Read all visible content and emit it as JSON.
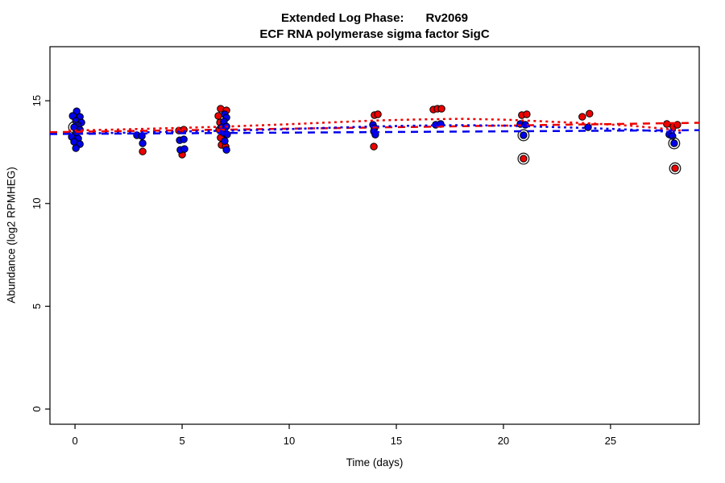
{
  "figure": {
    "title_prefix": "Extended Log Phase:",
    "title_gene": "Rv2069",
    "subtitle": "ECF RNA polymerase sigma factor SigC"
  },
  "chart_data": {
    "type": "scatter",
    "title": "Extended Log Phase: Rv2069",
    "subtitle": "ECF RNA polymerase sigma factor SigC",
    "xlabel": "Time  (days)",
    "ylabel": "Abundance  (log2 RPMHEG)",
    "xlim": [
      -1.17,
      29.14
    ],
    "ylim": [
      -0.74,
      17.63
    ],
    "x_ticks": [
      0,
      5,
      10,
      15,
      20,
      25
    ],
    "y_ticks": [
      0,
      5,
      10,
      15
    ],
    "grid": false,
    "legend": "none",
    "colors": {
      "red": "#ee0000",
      "blue": "#0000ee",
      "axis": "#000000",
      "ring": "#1a1a1a"
    },
    "series": [
      {
        "name": "red-points",
        "color": "#ee0000",
        "marker": "circle",
        "points": [
          [
            3.16,
            12.53
          ],
          [
            4.85,
            13.55
          ],
          [
            5.08,
            13.59
          ],
          [
            5.0,
            12.38
          ],
          [
            6.8,
            14.61
          ],
          [
            7.07,
            14.53
          ],
          [
            6.69,
            14.26
          ],
          [
            6.77,
            13.94
          ],
          [
            6.73,
            13.59
          ],
          [
            6.8,
            13.2
          ],
          [
            6.84,
            12.85
          ],
          [
            7.03,
            12.77
          ],
          [
            13.98,
            14.3
          ],
          [
            14.14,
            14.34
          ],
          [
            13.95,
            12.77
          ],
          [
            16.73,
            14.57
          ],
          [
            16.92,
            14.61
          ],
          [
            17.11,
            14.61
          ],
          [
            20.86,
            14.3
          ],
          [
            21.09,
            14.34
          ],
          [
            20.94,
            12.18
          ],
          [
            23.68,
            14.22
          ],
          [
            24.02,
            14.37
          ],
          [
            27.63,
            13.87
          ],
          [
            27.93,
            13.75
          ],
          [
            28.12,
            13.83
          ],
          [
            28.01,
            11.71
          ]
        ]
      },
      {
        "name": "blue-points",
        "color": "#0000ee",
        "marker": "circle",
        "points": [
          [
            0.08,
            14.49
          ],
          [
            -0.11,
            14.26
          ],
          [
            0.23,
            14.22
          ],
          [
            0.04,
            14.02
          ],
          [
            0.3,
            13.94
          ],
          [
            0.15,
            13.79
          ],
          [
            -0.04,
            13.71
          ],
          [
            0.23,
            13.59
          ],
          [
            0.04,
            13.4
          ],
          [
            -0.15,
            13.24
          ],
          [
            0.15,
            13.16
          ],
          [
            -0.04,
            13.0
          ],
          [
            0.23,
            12.89
          ],
          [
            0.04,
            12.69
          ],
          [
            2.89,
            13.32
          ],
          [
            3.12,
            13.28
          ],
          [
            3.16,
            12.93
          ],
          [
            4.89,
            13.08
          ],
          [
            5.08,
            13.12
          ],
          [
            4.92,
            12.61
          ],
          [
            5.11,
            12.65
          ],
          [
            6.99,
            14.34
          ],
          [
            7.07,
            14.18
          ],
          [
            6.95,
            13.98
          ],
          [
            6.84,
            13.71
          ],
          [
            7.07,
            13.75
          ],
          [
            6.95,
            13.43
          ],
          [
            7.1,
            13.36
          ],
          [
            6.99,
            13.04
          ],
          [
            7.07,
            12.61
          ],
          [
            13.91,
            13.83
          ],
          [
            13.98,
            13.67
          ],
          [
            13.95,
            13.51
          ],
          [
            14.02,
            13.35
          ],
          [
            16.84,
            13.83
          ],
          [
            17.07,
            13.87
          ],
          [
            20.79,
            13.87
          ],
          [
            21.02,
            13.83
          ],
          [
            20.94,
            13.32
          ],
          [
            23.95,
            13.71
          ],
          [
            27.74,
            13.36
          ],
          [
            27.89,
            13.28
          ],
          [
            27.97,
            12.93
          ]
        ]
      }
    ],
    "outlier_rings": [
      [
        -0.04,
        13.71
      ],
      [
        20.94,
        13.32
      ],
      [
        20.94,
        12.18
      ],
      [
        27.97,
        12.93
      ],
      [
        28.01,
        11.71
      ]
    ],
    "fit_lines": [
      {
        "name": "red-dashed-linear-fit",
        "color": "#ee0000",
        "dash": "dashed",
        "points": [
          [
            -1.17,
            13.47
          ],
          [
            29.14,
            13.93
          ]
        ]
      },
      {
        "name": "blue-dashed-linear-fit",
        "color": "#0000ee",
        "dash": "dashed",
        "points": [
          [
            -1.17,
            13.38
          ],
          [
            29.14,
            13.57
          ]
        ]
      },
      {
        "name": "red-dotted-smooth-fit",
        "color": "#ee0000",
        "dash": "dotted",
        "points": [
          [
            -0.3,
            13.55
          ],
          [
            2,
            13.6
          ],
          [
            5,
            13.68
          ],
          [
            7,
            13.74
          ],
          [
            10,
            13.86
          ],
          [
            12,
            13.95
          ],
          [
            14,
            14.04
          ],
          [
            16,
            14.09
          ],
          [
            18,
            14.12
          ],
          [
            20,
            14.08
          ],
          [
            22,
            13.99
          ],
          [
            24,
            13.9
          ],
          [
            26,
            13.78
          ],
          [
            27.5,
            13.64
          ],
          [
            28.3,
            13.55
          ]
        ]
      },
      {
        "name": "blue-dotted-smooth-fit",
        "color": "#0000ee",
        "dash": "dotted",
        "points": [
          [
            -0.3,
            13.4
          ],
          [
            2,
            13.44
          ],
          [
            5,
            13.5
          ],
          [
            7,
            13.54
          ],
          [
            10,
            13.62
          ],
          [
            12,
            13.69
          ],
          [
            14,
            13.75
          ],
          [
            16,
            13.79
          ],
          [
            18,
            13.81
          ],
          [
            20,
            13.79
          ],
          [
            22,
            13.73
          ],
          [
            24,
            13.67
          ],
          [
            26,
            13.59
          ],
          [
            27.5,
            13.5
          ],
          [
            28.3,
            13.44
          ]
        ]
      }
    ]
  }
}
